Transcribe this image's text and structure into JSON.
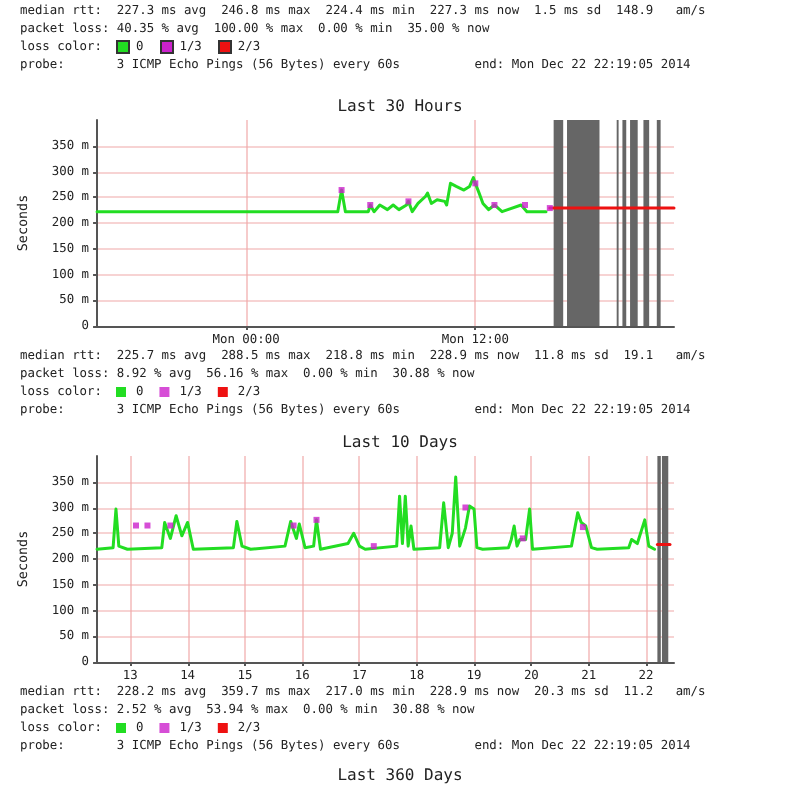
{
  "chart_data": [
    {
      "type": "other",
      "annotations": [
        "median rtt:  227.3 ms avg  246.8 ms max  224.4 ms min  227.3 ms now  1.5 ms sd  148.9   am/s",
        "packet loss: 40.35 % avg  100.00 % max  0.00 % min  35.00 % now",
        "probe:       3 ICMP Echo Pings (56 Bytes) every 60s          end: Mon Dec 22 22:19:05 2014"
      ],
      "legend_title": "loss color:",
      "categories": [
        "0",
        "1/3",
        "2/3"
      ],
      "colors": [
        "#22dd22",
        "#cc22cc",
        "#ee1111"
      ]
    },
    {
      "type": "line",
      "title": "Last 30 Hours",
      "ylabel": "Seconds",
      "xlim": [
        "2014-12-21T16:12",
        "2014-12-22T22:24"
      ],
      "xticks": [
        {
          "value": "2014-12-22T00:00",
          "label": "Mon 00:00"
        },
        {
          "value": "2014-12-22T12:00",
          "label": "Mon 12:00"
        }
      ],
      "ylim": [
        0,
        400
      ],
      "yticks": [
        0,
        {
          "value": 50,
          "label": "50 m"
        },
        {
          "value": 100,
          "label": "100 m"
        },
        {
          "value": 150,
          "label": "150 m"
        },
        {
          "value": 200,
          "label": "200 m"
        },
        {
          "value": 250,
          "label": "250 m"
        },
        {
          "value": 300,
          "label": "300 m"
        },
        {
          "value": 350,
          "label": "350 m"
        }
      ],
      "grid": true,
      "legend": "bottom",
      "legend_title": "loss color:",
      "bands": [
        {
          "axis": "x",
          "from": "2014-12-22T16:06",
          "to": "2014-12-22T16:36",
          "color": "#666666"
        },
        {
          "axis": "x",
          "from": "2014-12-22T16:48",
          "to": "2014-12-22T18:30",
          "color": "#666666"
        },
        {
          "axis": "x",
          "from": "2014-12-22T19:24",
          "to": "2014-12-22T19:30",
          "color": "#666666"
        },
        {
          "axis": "x",
          "from": "2014-12-22T19:42",
          "to": "2014-12-22T19:54",
          "color": "#666666"
        },
        {
          "axis": "x",
          "from": "2014-12-22T20:06",
          "to": "2014-12-22T20:30",
          "color": "#666666"
        },
        {
          "axis": "x",
          "from": "2014-12-22T20:48",
          "to": "2014-12-22T21:06",
          "color": "#666666"
        },
        {
          "axis": "x",
          "from": "2014-12-22T21:30",
          "to": "2014-12-22T21:42",
          "color": "#666666"
        }
      ],
      "series": [
        {
          "name": "0",
          "type": "line",
          "color": "#22dd22",
          "x": [
            "2014-12-21T16:12",
            "2014-12-22T04:48",
            "2014-12-22T05:00",
            "2014-12-22T05:12",
            "2014-12-22T06:24",
            "2014-12-22T06:30",
            "2014-12-22T06:42",
            "2014-12-22T07:00",
            "2014-12-22T07:24",
            "2014-12-22T07:42",
            "2014-12-22T08:00",
            "2014-12-22T08:24",
            "2014-12-22T08:30",
            "2014-12-22T08:42",
            "2014-12-22T09:00",
            "2014-12-22T09:24",
            "2014-12-22T09:30",
            "2014-12-22T09:42",
            "2014-12-22T10:00",
            "2014-12-22T10:24",
            "2014-12-22T10:30",
            "2014-12-22T10:42",
            "2014-12-22T11:00",
            "2014-12-22T11:24",
            "2014-12-22T11:42",
            "2014-12-22T11:54",
            "2014-12-22T12:00",
            "2014-12-22T12:12",
            "2014-12-22T12:24",
            "2014-12-22T12:42",
            "2014-12-22T13:00",
            "2014-12-22T13:24",
            "2014-12-22T13:42",
            "2014-12-22T14:24",
            "2014-12-22T14:42",
            "2014-12-22T15:42"
          ],
          "values": [
            222,
            222,
            264,
            222,
            222,
            235,
            222,
            235,
            226,
            235,
            226,
            235,
            242,
            222,
            238,
            252,
            258,
            238,
            245,
            242,
            235,
            277,
            271,
            264,
            271,
            288,
            277,
            258,
            238,
            226,
            235,
            222,
            226,
            235,
            222,
            222
          ]
        },
        {
          "name": "1/3",
          "type": "scatter",
          "marker": "square",
          "color": "#cc22cc",
          "x": [
            "2014-12-22T05:00",
            "2014-12-22T06:30",
            "2014-12-22T08:30",
            "2014-12-22T12:00",
            "2014-12-22T13:00",
            "2014-12-22T14:36",
            "2014-12-22T15:54"
          ],
          "values": [
            264,
            235,
            242,
            277,
            235,
            235,
            229
          ]
        },
        {
          "name": "2/3",
          "type": "line",
          "color": "#ee1111",
          "x": [
            "2014-12-22T15:54",
            "2014-12-22T22:24"
          ],
          "values": [
            229,
            229
          ]
        }
      ],
      "annotations": [
        "median rtt:  225.7 ms avg  288.5 ms max  218.8 ms min  228.9 ms now  11.8 ms sd  19.1   am/s",
        "packet loss: 8.92 % avg  56.16 % max  0.00 % min  30.88 % now",
        "probe:       3 ICMP Echo Pings (56 Bytes) every 60s          end: Mon Dec 22 22:19:05 2014"
      ]
    },
    {
      "type": "line",
      "title": "Last 10 Days",
      "ylabel": "Seconds",
      "xlim": [
        12.42,
        22.49
      ],
      "xticks": [
        13,
        14,
        15,
        16,
        17,
        18,
        19,
        20,
        21,
        22
      ],
      "ylim": [
        0,
        400
      ],
      "yticks": [
        0,
        {
          "value": 50,
          "label": "50 m"
        },
        {
          "value": 100,
          "label": "100 m"
        },
        {
          "value": 150,
          "label": "150 m"
        },
        {
          "value": 200,
          "label": "200 m"
        },
        {
          "value": 250,
          "label": "250 m"
        },
        {
          "value": 300,
          "label": "300 m"
        },
        {
          "value": 350,
          "label": "350 m"
        }
      ],
      "grid": true,
      "legend": "bottom",
      "legend_title": "loss color:",
      "bands": [
        {
          "axis": "x",
          "from": 22.2,
          "to": 22.26,
          "color": "#666666"
        },
        {
          "axis": "x",
          "from": 22.28,
          "to": 22.39,
          "color": "#666666"
        }
      ],
      "series": [
        {
          "name": "0",
          "type": "line",
          "color": "#22dd22",
          "x": [
            12.42,
            12.7,
            12.75,
            12.8,
            12.95,
            13.55,
            13.6,
            13.7,
            13.8,
            13.9,
            14.0,
            14.1,
            14.8,
            14.86,
            14.95,
            15.1,
            15.7,
            15.8,
            15.9,
            15.95,
            16.05,
            16.2,
            16.25,
            16.32,
            16.8,
            16.9,
            17.0,
            17.1,
            17.65,
            17.7,
            17.75,
            17.8,
            17.85,
            17.9,
            17.95,
            18.4,
            18.47,
            18.55,
            18.62,
            18.68,
            18.75,
            18.85,
            18.92,
            19.0,
            19.05,
            19.15,
            19.6,
            19.65,
            19.7,
            19.75,
            19.8,
            19.9,
            19.97,
            20.02,
            20.7,
            20.81,
            20.87,
            20.95,
            21.05,
            21.15,
            21.7,
            21.75,
            21.85,
            21.98,
            22.05,
            22.15
          ],
          "values": [
            219,
            222,
            297,
            225,
            219,
            222,
            271,
            240,
            284,
            245,
            271,
            219,
            222,
            273,
            225,
            219,
            225,
            273,
            240,
            268,
            222,
            225,
            276,
            219,
            230,
            250,
            225,
            219,
            225,
            322,
            230,
            322,
            225,
            264,
            219,
            222,
            309,
            222,
            250,
            359,
            225,
            260,
            303,
            297,
            222,
            219,
            222,
            238,
            264,
            225,
            238,
            238,
            297,
            219,
            225,
            290,
            271,
            264,
            222,
            219,
            222,
            238,
            230,
            276,
            225,
            219
          ]
        },
        {
          "name": "1/3",
          "type": "scatter",
          "marker": "square",
          "color": "#cc22cc",
          "x": [
            13.1,
            13.3,
            13.7,
            15.85,
            16.25,
            17.25,
            18.85,
            19.85,
            20.9
          ],
          "values": [
            265,
            265,
            265,
            265,
            276,
            225,
            300,
            240,
            262
          ]
        },
        {
          "name": "2/3",
          "type": "line",
          "color": "#ee1111",
          "x": [
            22.2,
            22.42
          ],
          "values": [
            228,
            228
          ]
        }
      ],
      "annotations": [
        "median rtt:  228.2 ms avg  359.7 ms max  217.0 ms min  228.9 ms now  20.3 ms sd  11.2   am/s",
        "packet loss: 2.52 % avg  53.94 % max  0.00 % min  30.88 % now",
        "probe:       3 ICMP Echo Pings (56 Bytes) every 60s          end: Mon Dec 22 22:19:05 2014"
      ]
    },
    {
      "type": "other",
      "title": "Last 360 Days"
    }
  ]
}
